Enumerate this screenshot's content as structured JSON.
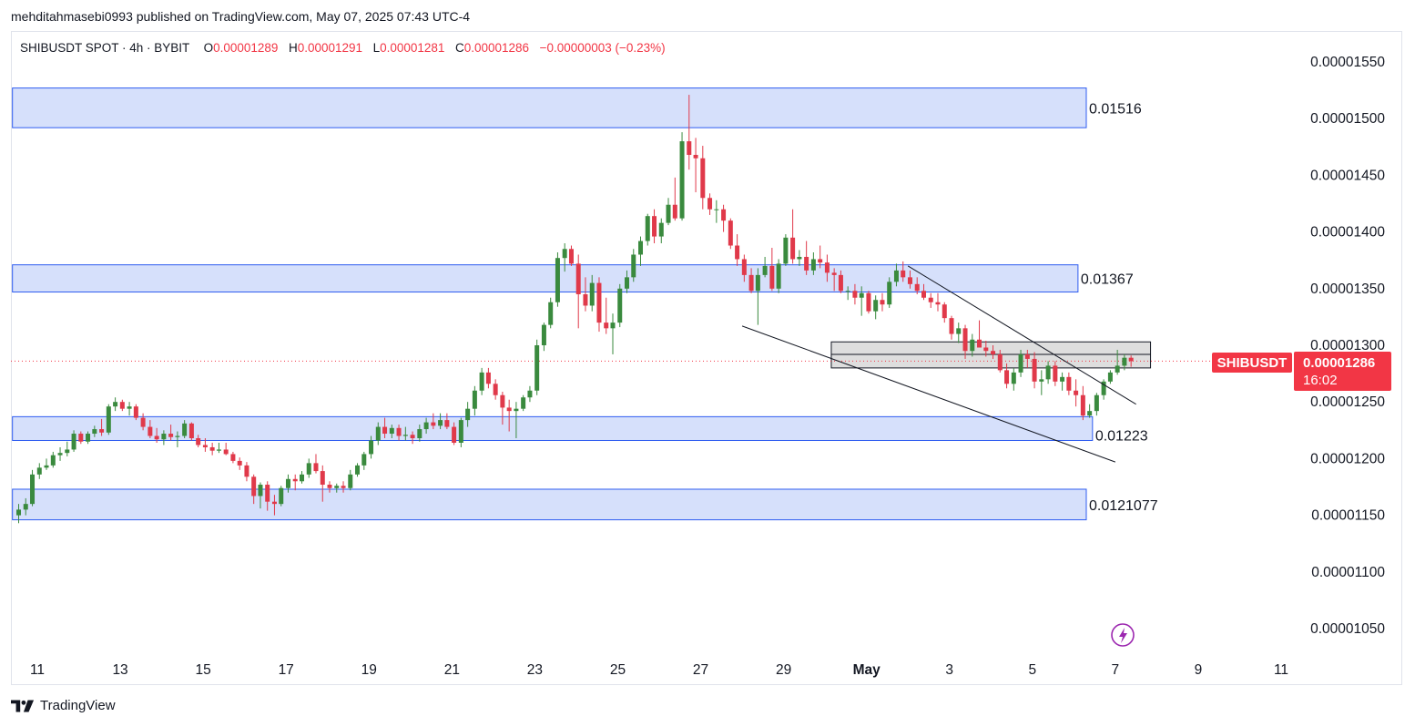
{
  "header": {
    "published_text": "mehditahmasebi0993 published on TradingView.com, May 07, 2025 07:43 UTC-4"
  },
  "legend": {
    "title": "SHIBUSDT SPOT · 4h · BYBIT",
    "o_label": "O",
    "o_value": "0.00001289",
    "h_label": "H",
    "h_value": "0.00001291",
    "l_label": "L",
    "l_value": "0.00001281",
    "c_label": "C",
    "c_value": "0.00001286",
    "change": "−0.00000003 (−0.23%)"
  },
  "price_tag": {
    "symbol": "SHIBUSDT",
    "price": "0.00001286",
    "countdown": "16:02",
    "color": "#f23645"
  },
  "footer": {
    "brand": "TradingView"
  },
  "colors": {
    "up": "#26a69a",
    "up_candle": "#3a8a3e",
    "down_candle": "#e0394a",
    "zone_fill": "#d6e0fb",
    "zone_border": "#2e5cf0",
    "gray_zone_fill": "#d8d8d8"
  },
  "chart_data": {
    "type": "candlestick",
    "symbol": "SHIBUSDT",
    "interval": "4h",
    "exchange": "BYBIT",
    "y_ticks": [
      "0.00001550",
      "0.00001500",
      "0.00001450",
      "0.00001400",
      "0.00001350",
      "0.00001300",
      "0.00001250",
      "0.00001200",
      "0.00001150",
      "0.00001100",
      "0.00001050"
    ],
    "ylim": [
      1.02e-05,
      1.57e-05
    ],
    "x_ticks": [
      "11",
      "13",
      "15",
      "17",
      "19",
      "21",
      "23",
      "25",
      "27",
      "29",
      "May",
      "3",
      "5",
      "7",
      "9",
      "11"
    ],
    "x_tick_days": [
      11,
      13,
      15,
      17,
      19,
      21,
      23,
      25,
      27,
      29,
      31,
      33,
      35,
      37,
      39,
      41
    ],
    "xlim_days": [
      10.4,
      42.3
    ],
    "zones": [
      {
        "label": "0.01516",
        "top": 1.527e-05,
        "bottom": 1.492e-05,
        "from_day": 10.4,
        "to_day": 36.3,
        "kind": "blue"
      },
      {
        "label": "0.01367",
        "top": 1.371e-05,
        "bottom": 1.347e-05,
        "from_day": 10.4,
        "to_day": 36.1,
        "kind": "blue"
      },
      {
        "label": "0.01223",
        "top": 1.237e-05,
        "bottom": 1.216e-05,
        "from_day": 10.4,
        "to_day": 36.45,
        "kind": "blue"
      },
      {
        "label": "0.0121077",
        "top": 1.173e-05,
        "bottom": 1.146e-05,
        "from_day": 10.4,
        "to_day": 36.3,
        "kind": "blue"
      },
      {
        "label": "",
        "top": 1.303e-05,
        "bottom": 1.28e-05,
        "from_day": 30.15,
        "to_day": 37.85,
        "kind": "gray",
        "mid": 1.292e-05
      }
    ],
    "trendlines": [
      {
        "from": [
          28.0,
          1.317e-05
        ],
        "to": [
          37.0,
          1.197e-05
        ]
      },
      {
        "from": [
          32.0,
          1.37e-05
        ],
        "to": [
          37.5,
          1.248e-05
        ]
      }
    ],
    "last_price": 1.286e-05,
    "candles_ohlc_note": "approximate 4h candles read off the chart",
    "candles": [
      [
        10.55,
        1.15,
        1.16,
        1.143,
        1.155
      ],
      [
        10.72,
        1.155,
        1.165,
        1.15,
        1.16
      ],
      [
        10.88,
        1.16,
        1.19,
        1.158,
        1.186
      ],
      [
        11.05,
        1.186,
        1.196,
        1.182,
        1.192
      ],
      [
        11.22,
        1.192,
        1.2,
        1.19,
        1.194
      ],
      [
        11.38,
        1.194,
        1.206,
        1.192,
        1.203
      ],
      [
        11.55,
        1.203,
        1.21,
        1.198,
        1.205
      ],
      [
        11.72,
        1.205,
        1.215,
        1.202,
        1.208
      ],
      [
        11.88,
        1.208,
        1.225,
        1.206,
        1.222
      ],
      [
        12.05,
        1.222,
        1.224,
        1.213,
        1.215
      ],
      [
        12.22,
        1.215,
        1.224,
        1.213,
        1.222
      ],
      [
        12.38,
        1.222,
        1.229,
        1.219,
        1.226
      ],
      [
        12.55,
        1.226,
        1.235,
        1.22,
        1.223
      ],
      [
        12.72,
        1.223,
        1.248,
        1.221,
        1.246
      ],
      [
        12.88,
        1.246,
        1.254,
        1.242,
        1.25
      ],
      [
        13.05,
        1.25,
        1.252,
        1.242,
        1.244
      ],
      [
        13.22,
        1.244,
        1.25,
        1.238,
        1.246
      ],
      [
        13.38,
        1.246,
        1.248,
        1.234,
        1.236
      ],
      [
        13.55,
        1.236,
        1.24,
        1.225,
        1.228
      ],
      [
        13.72,
        1.228,
        1.234,
        1.218,
        1.22
      ],
      [
        13.88,
        1.22,
        1.227,
        1.214,
        1.217
      ],
      [
        14.05,
        1.217,
        1.225,
        1.212,
        1.222
      ],
      [
        14.22,
        1.222,
        1.23,
        1.216,
        1.219
      ],
      [
        14.38,
        1.219,
        1.224,
        1.21,
        1.22
      ],
      [
        14.55,
        1.22,
        1.234,
        1.218,
        1.231
      ],
      [
        14.72,
        1.231,
        1.232,
        1.216,
        1.218
      ],
      [
        14.88,
        1.218,
        1.221,
        1.21,
        1.212
      ],
      [
        15.05,
        1.212,
        1.218,
        1.206,
        1.21
      ],
      [
        15.22,
        1.21,
        1.214,
        1.203,
        1.207
      ],
      [
        15.38,
        1.207,
        1.214,
        1.205,
        1.208
      ],
      [
        15.55,
        1.208,
        1.214,
        1.203,
        1.204
      ],
      [
        15.72,
        1.204,
        1.206,
        1.196,
        1.198
      ],
      [
        15.88,
        1.198,
        1.201,
        1.19,
        1.194
      ],
      [
        16.05,
        1.194,
        1.197,
        1.18,
        1.184
      ],
      [
        16.22,
        1.184,
        1.186,
        1.16,
        1.167
      ],
      [
        16.38,
        1.167,
        1.179,
        1.156,
        1.177
      ],
      [
        16.55,
        1.177,
        1.18,
        1.154,
        1.162
      ],
      [
        16.72,
        1.162,
        1.168,
        1.15,
        1.16
      ],
      [
        16.88,
        1.16,
        1.176,
        1.158,
        1.174
      ],
      [
        17.05,
        1.174,
        1.186,
        1.17,
        1.182
      ],
      [
        17.22,
        1.182,
        1.186,
        1.172,
        1.18
      ],
      [
        17.38,
        1.18,
        1.189,
        1.178,
        1.186
      ],
      [
        17.55,
        1.186,
        1.2,
        1.183,
        1.196
      ],
      [
        17.72,
        1.196,
        1.204,
        1.187,
        1.189
      ],
      [
        17.88,
        1.189,
        1.194,
        1.162,
        1.177
      ],
      [
        18.05,
        1.177,
        1.18,
        1.17,
        1.174
      ],
      [
        18.22,
        1.174,
        1.178,
        1.17,
        1.176
      ],
      [
        18.38,
        1.176,
        1.18,
        1.17,
        1.174
      ],
      [
        18.55,
        1.174,
        1.19,
        1.172,
        1.186
      ],
      [
        18.72,
        1.186,
        1.196,
        1.184,
        1.194
      ],
      [
        18.88,
        1.194,
        1.206,
        1.19,
        1.204
      ],
      [
        19.05,
        1.204,
        1.22,
        1.2,
        1.216
      ],
      [
        19.22,
        1.216,
        1.232,
        1.212,
        1.228
      ],
      [
        19.38,
        1.228,
        1.236,
        1.218,
        1.222
      ],
      [
        19.55,
        1.222,
        1.23,
        1.218,
        1.227
      ],
      [
        19.72,
        1.227,
        1.23,
        1.216,
        1.22
      ],
      [
        19.88,
        1.22,
        1.228,
        1.216,
        1.221
      ],
      [
        20.05,
        1.221,
        1.224,
        1.213,
        1.218
      ],
      [
        20.22,
        1.218,
        1.23,
        1.215,
        1.226
      ],
      [
        20.38,
        1.226,
        1.236,
        1.222,
        1.232
      ],
      [
        20.55,
        1.232,
        1.24,
        1.226,
        1.229
      ],
      [
        20.72,
        1.229,
        1.24,
        1.226,
        1.234
      ],
      [
        20.88,
        1.234,
        1.24,
        1.226,
        1.228
      ],
      [
        21.05,
        1.228,
        1.232,
        1.212,
        1.214
      ],
      [
        21.22,
        1.214,
        1.236,
        1.21,
        1.234
      ],
      [
        21.38,
        1.234,
        1.25,
        1.228,
        1.244
      ],
      [
        21.55,
        1.244,
        1.264,
        1.238,
        1.26
      ],
      [
        21.72,
        1.26,
        1.28,
        1.256,
        1.276
      ],
      [
        21.88,
        1.276,
        1.28,
        1.262,
        1.266
      ],
      [
        22.05,
        1.266,
        1.27,
        1.252,
        1.256
      ],
      [
        22.22,
        1.256,
        1.259,
        1.23,
        1.245
      ],
      [
        22.38,
        1.245,
        1.252,
        1.224,
        1.242
      ],
      [
        22.55,
        1.242,
        1.25,
        1.218,
        1.244
      ],
      [
        22.72,
        1.244,
        1.256,
        1.242,
        1.254
      ],
      [
        22.88,
        1.254,
        1.264,
        1.25,
        1.26
      ],
      [
        23.05,
        1.26,
        1.305,
        1.256,
        1.3
      ],
      [
        23.22,
        1.3,
        1.32,
        1.295,
        1.318
      ],
      [
        23.38,
        1.318,
        1.342,
        1.315,
        1.338
      ],
      [
        23.55,
        1.338,
        1.382,
        1.334,
        1.377
      ],
      [
        23.72,
        1.377,
        1.39,
        1.365,
        1.385
      ],
      [
        23.88,
        1.385,
        1.388,
        1.37,
        1.372
      ],
      [
        24.05,
        1.372,
        1.38,
        1.315,
        1.345
      ],
      [
        24.22,
        1.345,
        1.36,
        1.33,
        1.335
      ],
      [
        24.38,
        1.335,
        1.362,
        1.33,
        1.355
      ],
      [
        24.55,
        1.355,
        1.36,
        1.312,
        1.32
      ],
      [
        24.72,
        1.32,
        1.342,
        1.31,
        1.315
      ],
      [
        24.88,
        1.315,
        1.328,
        1.292,
        1.32
      ],
      [
        25.05,
        1.32,
        1.354,
        1.316,
        1.35
      ],
      [
        25.22,
        1.35,
        1.366,
        1.346,
        1.36
      ],
      [
        25.38,
        1.36,
        1.385,
        1.356,
        1.38
      ],
      [
        25.55,
        1.38,
        1.396,
        1.37,
        1.392
      ],
      [
        25.72,
        1.392,
        1.416,
        1.388,
        1.414
      ],
      [
        25.88,
        1.414,
        1.42,
        1.39,
        1.396
      ],
      [
        26.05,
        1.396,
        1.412,
        1.39,
        1.408
      ],
      [
        26.22,
        1.408,
        1.43,
        1.406,
        1.424
      ],
      [
        26.38,
        1.424,
        1.448,
        1.41,
        1.412
      ],
      [
        26.55,
        1.412,
        1.488,
        1.41,
        1.48
      ],
      [
        26.72,
        1.48,
        1.521,
        1.455,
        1.468
      ],
      [
        26.88,
        1.468,
        1.483,
        1.435,
        1.465
      ],
      [
        27.05,
        1.465,
        1.476,
        1.42,
        1.43
      ],
      [
        27.22,
        1.43,
        1.434,
        1.415,
        1.42
      ],
      [
        27.38,
        1.42,
        1.428,
        1.408,
        1.42
      ],
      [
        27.55,
        1.42,
        1.424,
        1.4,
        1.41
      ],
      [
        27.72,
        1.41,
        1.412,
        1.385,
        1.388
      ],
      [
        27.88,
        1.388,
        1.398,
        1.37,
        1.376
      ],
      [
        28.05,
        1.376,
        1.38,
        1.356,
        1.362
      ],
      [
        28.22,
        1.362,
        1.368,
        1.346,
        1.348
      ],
      [
        28.38,
        1.348,
        1.368,
        1.318,
        1.362
      ],
      [
        28.55,
        1.362,
        1.378,
        1.36,
        1.37
      ],
      [
        28.72,
        1.37,
        1.386,
        1.348,
        1.35
      ],
      [
        28.88,
        1.35,
        1.376,
        1.346,
        1.372
      ],
      [
        29.05,
        1.372,
        1.398,
        1.37,
        1.395
      ],
      [
        29.22,
        1.395,
        1.42,
        1.372,
        1.376
      ],
      [
        29.38,
        1.376,
        1.384,
        1.37,
        1.378
      ],
      [
        29.55,
        1.378,
        1.392,
        1.362,
        1.366
      ],
      [
        29.72,
        1.366,
        1.382,
        1.362,
        1.376
      ],
      [
        29.88,
        1.376,
        1.388,
        1.368,
        1.373
      ],
      [
        30.05,
        1.373,
        1.38,
        1.356,
        1.364
      ],
      [
        30.22,
        1.364,
        1.368,
        1.348,
        1.362
      ],
      [
        30.38,
        1.362,
        1.366,
        1.346,
        1.348
      ],
      [
        30.55,
        1.348,
        1.352,
        1.34,
        1.348
      ],
      [
        30.72,
        1.348,
        1.354,
        1.336,
        1.342
      ],
      [
        30.88,
        1.342,
        1.352,
        1.326,
        1.346
      ],
      [
        31.05,
        1.346,
        1.348,
        1.328,
        1.33
      ],
      [
        31.22,
        1.33,
        1.344,
        1.323,
        1.34
      ],
      [
        31.38,
        1.34,
        1.346,
        1.33,
        1.336
      ],
      [
        31.55,
        1.336,
        1.36,
        1.333,
        1.356
      ],
      [
        31.72,
        1.356,
        1.372,
        1.352,
        1.366
      ],
      [
        31.88,
        1.366,
        1.374,
        1.356,
        1.36
      ],
      [
        32.05,
        1.36,
        1.366,
        1.35,
        1.354
      ],
      [
        32.22,
        1.354,
        1.36,
        1.345,
        1.348
      ],
      [
        32.38,
        1.348,
        1.354,
        1.34,
        1.342
      ],
      [
        32.55,
        1.342,
        1.346,
        1.333,
        1.338
      ],
      [
        32.72,
        1.338,
        1.346,
        1.33,
        1.336
      ],
      [
        32.88,
        1.336,
        1.338,
        1.32,
        1.324
      ],
      [
        33.05,
        1.324,
        1.326,
        1.305,
        1.31
      ],
      [
        33.22,
        1.31,
        1.32,
        1.302,
        1.315
      ],
      [
        33.38,
        1.315,
        1.318,
        1.288,
        1.295
      ],
      [
        33.55,
        1.295,
        1.31,
        1.29,
        1.305
      ],
      [
        33.72,
        1.305,
        1.322,
        1.298,
        1.298
      ],
      [
        33.88,
        1.298,
        1.304,
        1.29,
        1.295
      ],
      [
        34.05,
        1.295,
        1.3,
        1.288,
        1.292
      ],
      [
        34.22,
        1.292,
        1.296,
        1.276,
        1.278
      ],
      [
        34.38,
        1.278,
        1.284,
        1.262,
        1.266
      ],
      [
        34.55,
        1.266,
        1.28,
        1.26,
        1.276
      ],
      [
        34.72,
        1.276,
        1.296,
        1.272,
        1.292
      ],
      [
        34.88,
        1.292,
        1.296,
        1.28,
        1.288
      ],
      [
        35.05,
        1.288,
        1.294,
        1.262,
        1.268
      ],
      [
        35.22,
        1.268,
        1.278,
        1.256,
        1.27
      ],
      [
        35.38,
        1.27,
        1.286,
        1.266,
        1.282
      ],
      [
        35.55,
        1.282,
        1.286,
        1.264,
        1.268
      ],
      [
        35.72,
        1.268,
        1.276,
        1.26,
        1.272
      ],
      [
        35.88,
        1.272,
        1.276,
        1.256,
        1.26
      ],
      [
        36.05,
        1.26,
        1.27,
        1.246,
        1.256
      ],
      [
        36.22,
        1.256,
        1.264,
        1.234,
        1.238
      ],
      [
        36.38,
        1.238,
        1.248,
        1.236,
        1.242
      ],
      [
        36.55,
        1.242,
        1.258,
        1.238,
        1.256
      ],
      [
        36.72,
        1.256,
        1.27,
        1.252,
        1.268
      ],
      [
        36.88,
        1.268,
        1.278,
        1.266,
        1.276
      ],
      [
        37.05,
        1.276,
        1.296,
        1.274,
        1.282
      ],
      [
        37.22,
        1.282,
        1.292,
        1.278,
        1.289
      ],
      [
        37.38,
        1.289,
        1.291,
        1.281,
        1.286
      ]
    ],
    "candle_scale": 1e-05
  }
}
